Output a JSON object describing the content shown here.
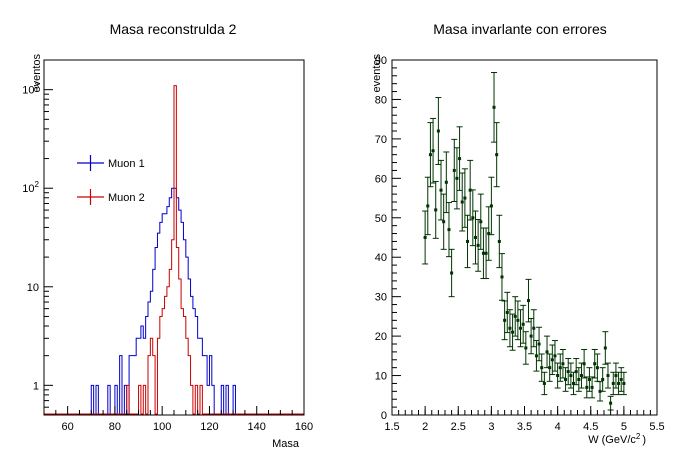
{
  "chart_data": [
    {
      "type": "histogram",
      "title": "Masa reconstrulda 2",
      "xlabel": "Masa",
      "ylabel": "eventos",
      "xlim": [
        50,
        160
      ],
      "ylim": [
        0.5,
        2000
      ],
      "yscale": "log",
      "x_ticks": [
        60,
        80,
        100,
        120,
        140,
        160
      ],
      "y_ticks": [
        {
          "v": 1,
          "base": "1",
          "exp": ""
        },
        {
          "v": 10,
          "base": "10",
          "exp": ""
        },
        {
          "v": 100,
          "base": "10",
          "exp": "2"
        },
        {
          "v": 1000,
          "base": "10",
          "exp": "3"
        }
      ],
      "bin_width": 1,
      "legend_placement": "left-center",
      "series": [
        {
          "name": "Muon 1",
          "color": "#0000cc",
          "bins": [
            [
              70,
              1
            ],
            [
              72,
              1
            ],
            [
              77,
              1
            ],
            [
              80,
              1
            ],
            [
              82,
              2
            ],
            [
              84,
              1
            ],
            [
              86,
              2
            ],
            [
              87,
              2
            ],
            [
              88,
              2
            ],
            [
              89,
              3
            ],
            [
              90,
              3
            ],
            [
              91,
              4
            ],
            [
              92,
              3
            ],
            [
              93,
              5
            ],
            [
              94,
              7
            ],
            [
              95,
              9
            ],
            [
              96,
              15
            ],
            [
              97,
              25
            ],
            [
              98,
              35
            ],
            [
              99,
              45
            ],
            [
              100,
              55
            ],
            [
              101,
              55
            ],
            [
              102,
              65
            ],
            [
              103,
              80
            ],
            [
              104,
              100
            ],
            [
              105,
              100
            ],
            [
              106,
              80
            ],
            [
              107,
              60
            ],
            [
              108,
              45
            ],
            [
              109,
              30
            ],
            [
              110,
              20
            ],
            [
              111,
              12
            ],
            [
              112,
              8
            ],
            [
              113,
              6
            ],
            [
              114,
              5
            ],
            [
              115,
              3
            ],
            [
              116,
              3
            ],
            [
              117,
              2
            ],
            [
              118,
              2
            ],
            [
              119,
              1
            ],
            [
              120,
              2
            ],
            [
              121,
              1
            ],
            [
              125,
              1
            ],
            [
              127,
              1
            ],
            [
              130,
              1
            ]
          ]
        },
        {
          "name": "Muon 2",
          "color": "#cc0000",
          "bins": [
            [
              85,
              1
            ],
            [
              90,
              1
            ],
            [
              92,
              1
            ],
            [
              94,
              2
            ],
            [
              95,
              3
            ],
            [
              96,
              2
            ],
            [
              98,
              3
            ],
            [
              99,
              5
            ],
            [
              100,
              6
            ],
            [
              101,
              8
            ],
            [
              102,
              10
            ],
            [
              103,
              15
            ],
            [
              104,
              30
            ],
            [
              105,
              1100
            ],
            [
              106,
              25
            ],
            [
              107,
              12
            ],
            [
              108,
              6
            ],
            [
              109,
              5
            ],
            [
              110,
              3
            ],
            [
              111,
              2
            ],
            [
              112,
              1
            ],
            [
              114,
              1
            ],
            [
              116,
              1
            ]
          ]
        }
      ]
    },
    {
      "type": "scatter",
      "title": "Masa invarlante con errores",
      "xlabel": "W (GeV/c",
      "xlabel_sup": "2",
      "xlabel_tail": ")",
      "ylabel": "eventos",
      "xlim": [
        1.5,
        5.5
      ],
      "ylim": [
        0,
        90
      ],
      "x_ticks": [
        "1.5",
        "2",
        "2.5",
        "3",
        "3.5",
        "4",
        "4.5",
        "5",
        "5.5"
      ],
      "y_ticks": [
        "0",
        "10",
        "20",
        "30",
        "40",
        "50",
        "60",
        "70",
        "80",
        "90"
      ],
      "color": "#003300",
      "points": [
        [
          2.0,
          45
        ],
        [
          2.04,
          53
        ],
        [
          2.08,
          66
        ],
        [
          2.12,
          67
        ],
        [
          2.16,
          52
        ],
        [
          2.2,
          72
        ],
        [
          2.24,
          57
        ],
        [
          2.28,
          49
        ],
        [
          2.32,
          59
        ],
        [
          2.36,
          47
        ],
        [
          2.4,
          36
        ],
        [
          2.44,
          62
        ],
        [
          2.48,
          60
        ],
        [
          2.52,
          65
        ],
        [
          2.56,
          54
        ],
        [
          2.6,
          55
        ],
        [
          2.64,
          44
        ],
        [
          2.68,
          57
        ],
        [
          2.72,
          50
        ],
        [
          2.76,
          45
        ],
        [
          2.8,
          43
        ],
        [
          2.84,
          49
        ],
        [
          2.88,
          41
        ],
        [
          2.92,
          41
        ],
        [
          2.96,
          46
        ],
        [
          3.0,
          53
        ],
        [
          3.04,
          78
        ],
        [
          3.08,
          66
        ],
        [
          3.12,
          44
        ],
        [
          3.16,
          35
        ],
        [
          3.2,
          24
        ],
        [
          3.24,
          26
        ],
        [
          3.28,
          22
        ],
        [
          3.32,
          21
        ],
        [
          3.36,
          25
        ],
        [
          3.4,
          24
        ],
        [
          3.44,
          22
        ],
        [
          3.48,
          23
        ],
        [
          3.52,
          17
        ],
        [
          3.56,
          29
        ],
        [
          3.6,
          20
        ],
        [
          3.64,
          22
        ],
        [
          3.68,
          15
        ],
        [
          3.72,
          18
        ],
        [
          3.76,
          12
        ],
        [
          3.8,
          8
        ],
        [
          3.84,
          16
        ],
        [
          3.88,
          12
        ],
        [
          3.92,
          14
        ],
        [
          3.96,
          15
        ],
        [
          4.0,
          10
        ],
        [
          4.04,
          12
        ],
        [
          4.08,
          13
        ],
        [
          4.12,
          9
        ],
        [
          4.16,
          11
        ],
        [
          4.2,
          10
        ],
        [
          4.24,
          8
        ],
        [
          4.28,
          11
        ],
        [
          4.32,
          9
        ],
        [
          4.36,
          10
        ],
        [
          4.4,
          13
        ],
        [
          4.44,
          7
        ],
        [
          4.48,
          9
        ],
        [
          4.52,
          7
        ],
        [
          4.56,
          13
        ],
        [
          4.6,
          12
        ],
        [
          4.64,
          6
        ],
        [
          4.68,
          9
        ],
        [
          4.72,
          17
        ],
        [
          4.76,
          10
        ],
        [
          4.8,
          3
        ],
        [
          4.84,
          8
        ],
        [
          4.88,
          10
        ],
        [
          4.92,
          8
        ],
        [
          4.96,
          9
        ],
        [
          5.0,
          8
        ]
      ]
    }
  ]
}
